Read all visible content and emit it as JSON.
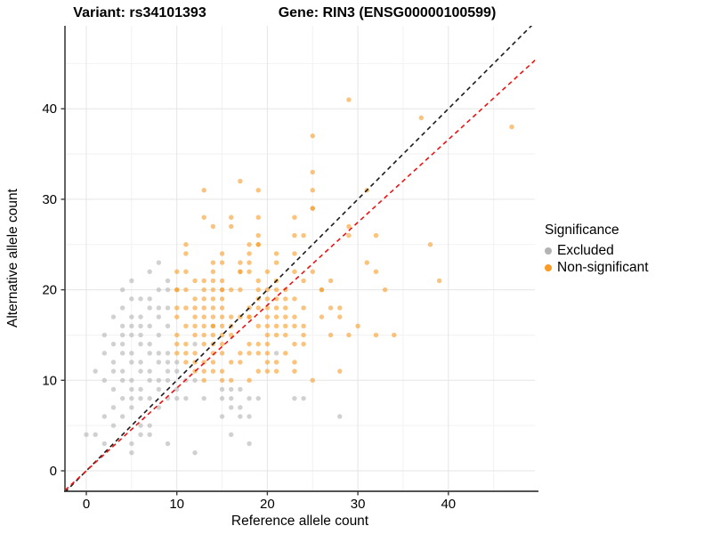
{
  "title": {
    "variant": "Variant: rs34101393",
    "gene": "Gene: RIN3 (ENSG00000100599)"
  },
  "legend": {
    "title": "Significance",
    "items": [
      {
        "label": "Excluded",
        "color": "#b3b3b3"
      },
      {
        "label": "Non-significant",
        "color": "#f99b25"
      }
    ]
  },
  "chart_data": {
    "type": "scatter",
    "title": "Variant: rs34101393 | Gene: RIN3 (ENSG00000100599)",
    "xlabel": "Reference allele count",
    "ylabel": "Alternative allele count",
    "xlim": [
      -2.4,
      49.6
    ],
    "ylim": [
      -2.3,
      49.2
    ],
    "x_ticks": [
      0,
      10,
      20,
      30,
      40
    ],
    "y_ticks": [
      0,
      10,
      20,
      30,
      40
    ],
    "x_minor_ticks": [
      5,
      15,
      25,
      35,
      45
    ],
    "y_minor_ticks": [
      5,
      15,
      25,
      35,
      45
    ],
    "grid": "on",
    "legend_position": "right",
    "point_alpha": 0.6,
    "colors": {
      "excluded": "#b3b3b3",
      "non_significant": "#f99b25",
      "grid_major": "#e5e5e5",
      "grid_minor": "#f2f2f2",
      "axis": "#3c3c3c"
    },
    "lines": [
      {
        "name": "identity",
        "slope": 1,
        "intercept": 0,
        "style": "dashed",
        "color": "#1a1a1a"
      },
      {
        "name": "expected-ratio",
        "slope": 0.915,
        "intercept": 0,
        "style": "dashed",
        "color": "#ee1111"
      }
    ],
    "series": [
      {
        "name": "Excluded",
        "color": "#b3b3b3",
        "points": [
          [
            0,
            4
          ],
          [
            1,
            4
          ],
          [
            5,
            2
          ],
          [
            12,
            2
          ],
          [
            2,
            3
          ],
          [
            5,
            3
          ],
          [
            9,
            3
          ],
          [
            18,
            3
          ],
          [
            6,
            4
          ],
          [
            7,
            4
          ],
          [
            16,
            4
          ],
          [
            3,
            5
          ],
          [
            6,
            5
          ],
          [
            7,
            5
          ],
          [
            2,
            6
          ],
          [
            4,
            6
          ],
          [
            15,
            6
          ],
          [
            17,
            6
          ],
          [
            18,
            6
          ],
          [
            28,
            6
          ],
          [
            3,
            7
          ],
          [
            5,
            7
          ],
          [
            8,
            7
          ],
          [
            16,
            7
          ],
          [
            17,
            7
          ],
          [
            4,
            8
          ],
          [
            5,
            8
          ],
          [
            6,
            8
          ],
          [
            7,
            8
          ],
          [
            9,
            8
          ],
          [
            10,
            8
          ],
          [
            11,
            8
          ],
          [
            13,
            8
          ],
          [
            15,
            8
          ],
          [
            16,
            8
          ],
          [
            18,
            8
          ],
          [
            19,
            8
          ],
          [
            23,
            8
          ],
          [
            24,
            8
          ],
          [
            3,
            9
          ],
          [
            5,
            9
          ],
          [
            6,
            9
          ],
          [
            8,
            9
          ],
          [
            10,
            9
          ],
          [
            15,
            9
          ],
          [
            16,
            9
          ],
          [
            17,
            9
          ],
          [
            2,
            10
          ],
          [
            4,
            10
          ],
          [
            5,
            10
          ],
          [
            7,
            10
          ],
          [
            8,
            10
          ],
          [
            9,
            10
          ],
          [
            11,
            10
          ],
          [
            12,
            10
          ],
          [
            1,
            11
          ],
          [
            3,
            11
          ],
          [
            4,
            11
          ],
          [
            6,
            11
          ],
          [
            7,
            11
          ],
          [
            9,
            11
          ],
          [
            10,
            11
          ],
          [
            3,
            12
          ],
          [
            5,
            12
          ],
          [
            6,
            12
          ],
          [
            8,
            12
          ],
          [
            9,
            12
          ],
          [
            10,
            12
          ],
          [
            2,
            13
          ],
          [
            4,
            13
          ],
          [
            5,
            13
          ],
          [
            7,
            13
          ],
          [
            8,
            13
          ],
          [
            9,
            13
          ],
          [
            21,
            13
          ],
          [
            3,
            14
          ],
          [
            4,
            14
          ],
          [
            6,
            14
          ],
          [
            7,
            14
          ],
          [
            12,
            14
          ],
          [
            2,
            15
          ],
          [
            4,
            15
          ],
          [
            5,
            15
          ],
          [
            6,
            15
          ],
          [
            8,
            15
          ],
          [
            4,
            16
          ],
          [
            5,
            16
          ],
          [
            6,
            16
          ],
          [
            7,
            16
          ],
          [
            9,
            16
          ],
          [
            3,
            17
          ],
          [
            5,
            17
          ],
          [
            6,
            17
          ],
          [
            8,
            17
          ],
          [
            4,
            18
          ],
          [
            7,
            18
          ],
          [
            8,
            18
          ],
          [
            9,
            18
          ],
          [
            5,
            19
          ],
          [
            6,
            19
          ],
          [
            7,
            19
          ],
          [
            4,
            20
          ],
          [
            8,
            20
          ],
          [
            9,
            20
          ],
          [
            5,
            21
          ],
          [
            9,
            21
          ],
          [
            7,
            22
          ],
          [
            8,
            23
          ]
        ]
      },
      {
        "name": "Non-significant",
        "color": "#f99b25",
        "points": [
          [
            13,
            10
          ],
          [
            15,
            10
          ],
          [
            16,
            10
          ],
          [
            18,
            10
          ],
          [
            25,
            10
          ],
          [
            12,
            11
          ],
          [
            13,
            11
          ],
          [
            14,
            11
          ],
          [
            15,
            11
          ],
          [
            19,
            11
          ],
          [
            20,
            11
          ],
          [
            21,
            11
          ],
          [
            23,
            11
          ],
          [
            28,
            11
          ],
          [
            11,
            12
          ],
          [
            12,
            12
          ],
          [
            13,
            12
          ],
          [
            14,
            12
          ],
          [
            16,
            12
          ],
          [
            17,
            12
          ],
          [
            20,
            12
          ],
          [
            21,
            12
          ],
          [
            23,
            12
          ],
          [
            10,
            13
          ],
          [
            11,
            13
          ],
          [
            12,
            13
          ],
          [
            14,
            13
          ],
          [
            15,
            13
          ],
          [
            17,
            13
          ],
          [
            18,
            13
          ],
          [
            19,
            13
          ],
          [
            20,
            13
          ],
          [
            22,
            13
          ],
          [
            10,
            14
          ],
          [
            11,
            14
          ],
          [
            13,
            14
          ],
          [
            14,
            14
          ],
          [
            15,
            14
          ],
          [
            18,
            14
          ],
          [
            19,
            14
          ],
          [
            20,
            14
          ],
          [
            23,
            14
          ],
          [
            24,
            14
          ],
          [
            10,
            15
          ],
          [
            12,
            15
          ],
          [
            13,
            15
          ],
          [
            14,
            15
          ],
          [
            15,
            15
          ],
          [
            16,
            15
          ],
          [
            20,
            15
          ],
          [
            21,
            15
          ],
          [
            22,
            15
          ],
          [
            24,
            15
          ],
          [
            27,
            15
          ],
          [
            29,
            15
          ],
          [
            32,
            15
          ],
          [
            34,
            15
          ],
          [
            11,
            16
          ],
          [
            12,
            16
          ],
          [
            13,
            16
          ],
          [
            14,
            16
          ],
          [
            14,
            16
          ],
          [
            15,
            16
          ],
          [
            16,
            16
          ],
          [
            19,
            16
          ],
          [
            20,
            16
          ],
          [
            21,
            16
          ],
          [
            22,
            16
          ],
          [
            23,
            16
          ],
          [
            24,
            16
          ],
          [
            30,
            16
          ],
          [
            10,
            17
          ],
          [
            12,
            17
          ],
          [
            13,
            17
          ],
          [
            14,
            17
          ],
          [
            15,
            17
          ],
          [
            16,
            17
          ],
          [
            17,
            17
          ],
          [
            18,
            17
          ],
          [
            18,
            17
          ],
          [
            20,
            17
          ],
          [
            21,
            17
          ],
          [
            22,
            17
          ],
          [
            23,
            17
          ],
          [
            26,
            17
          ],
          [
            28,
            17
          ],
          [
            10,
            18
          ],
          [
            11,
            18
          ],
          [
            12,
            18
          ],
          [
            13,
            18
          ],
          [
            14,
            18
          ],
          [
            15,
            18
          ],
          [
            18,
            18
          ],
          [
            19,
            18
          ],
          [
            20,
            18
          ],
          [
            21,
            18
          ],
          [
            22,
            18
          ],
          [
            24,
            18
          ],
          [
            27,
            18
          ],
          [
            28,
            18
          ],
          [
            12,
            19
          ],
          [
            13,
            19
          ],
          [
            14,
            19
          ],
          [
            15,
            19
          ],
          [
            19,
            19
          ],
          [
            20,
            19
          ],
          [
            21,
            19
          ],
          [
            22,
            19
          ],
          [
            23,
            19
          ],
          [
            10,
            20
          ],
          [
            10,
            20
          ],
          [
            11,
            20
          ],
          [
            13,
            20
          ],
          [
            14,
            20
          ],
          [
            15,
            20
          ],
          [
            15,
            20
          ],
          [
            16,
            20
          ],
          [
            17,
            20
          ],
          [
            19,
            20
          ],
          [
            20,
            20
          ],
          [
            21,
            20
          ],
          [
            22,
            20
          ],
          [
            26,
            20
          ],
          [
            26,
            20
          ],
          [
            33,
            20
          ],
          [
            12,
            21
          ],
          [
            13,
            21
          ],
          [
            14,
            21
          ],
          [
            15,
            21
          ],
          [
            19,
            21
          ],
          [
            21,
            21
          ],
          [
            24,
            21
          ],
          [
            27,
            21
          ],
          [
            39,
            21
          ],
          [
            10,
            22
          ],
          [
            11,
            22
          ],
          [
            14,
            22
          ],
          [
            17,
            22
          ],
          [
            17,
            22
          ],
          [
            18,
            22
          ],
          [
            20,
            22
          ],
          [
            23,
            22
          ],
          [
            25,
            22
          ],
          [
            32,
            22
          ],
          [
            14,
            23
          ],
          [
            15,
            23
          ],
          [
            17,
            23
          ],
          [
            18,
            23
          ],
          [
            21,
            23
          ],
          [
            31,
            23
          ],
          [
            11,
            24
          ],
          [
            15,
            24
          ],
          [
            18,
            24
          ],
          [
            21,
            24
          ],
          [
            23,
            24
          ],
          [
            11,
            25
          ],
          [
            18,
            25
          ],
          [
            19,
            25
          ],
          [
            19,
            25
          ],
          [
            38,
            25
          ],
          [
            19,
            26
          ],
          [
            23,
            26
          ],
          [
            24,
            26
          ],
          [
            29,
            26
          ],
          [
            32,
            26
          ],
          [
            14,
            27
          ],
          [
            16,
            27
          ],
          [
            29,
            27
          ],
          [
            13,
            28
          ],
          [
            16,
            28
          ],
          [
            19,
            28
          ],
          [
            23,
            28
          ],
          [
            25,
            29
          ],
          [
            25,
            29
          ],
          [
            13,
            31
          ],
          [
            19,
            31
          ],
          [
            25,
            31
          ],
          [
            31,
            31
          ],
          [
            17,
            32
          ],
          [
            25,
            33
          ],
          [
            25,
            37
          ],
          [
            47,
            38
          ],
          [
            37,
            39
          ],
          [
            29,
            41
          ]
        ]
      }
    ]
  }
}
